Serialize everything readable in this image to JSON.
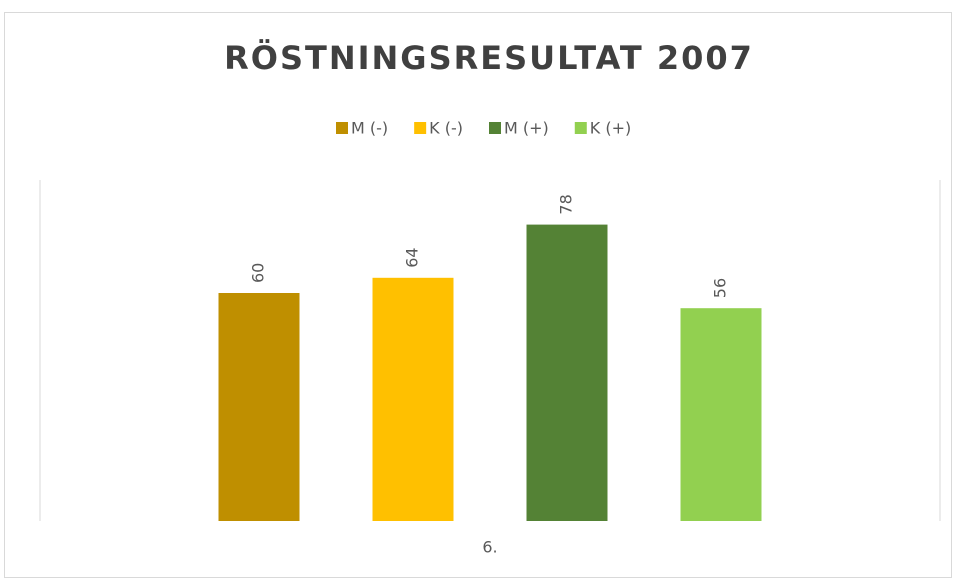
{
  "chart_data": {
    "type": "bar",
    "title": "RÖSTNINGSRESULTAT 2007",
    "categories": [
      "6."
    ],
    "series": [
      {
        "name": "M (-)",
        "color": "#bf8f00",
        "values": [
          60
        ]
      },
      {
        "name": "K (-)",
        "color": "#ffc000",
        "values": [
          64
        ]
      },
      {
        "name": "M (+)",
        "color": "#548235",
        "values": [
          78
        ]
      },
      {
        "name": "K (+)",
        "color": "#92d050",
        "values": [
          56
        ]
      }
    ],
    "legend": "top"
  }
}
